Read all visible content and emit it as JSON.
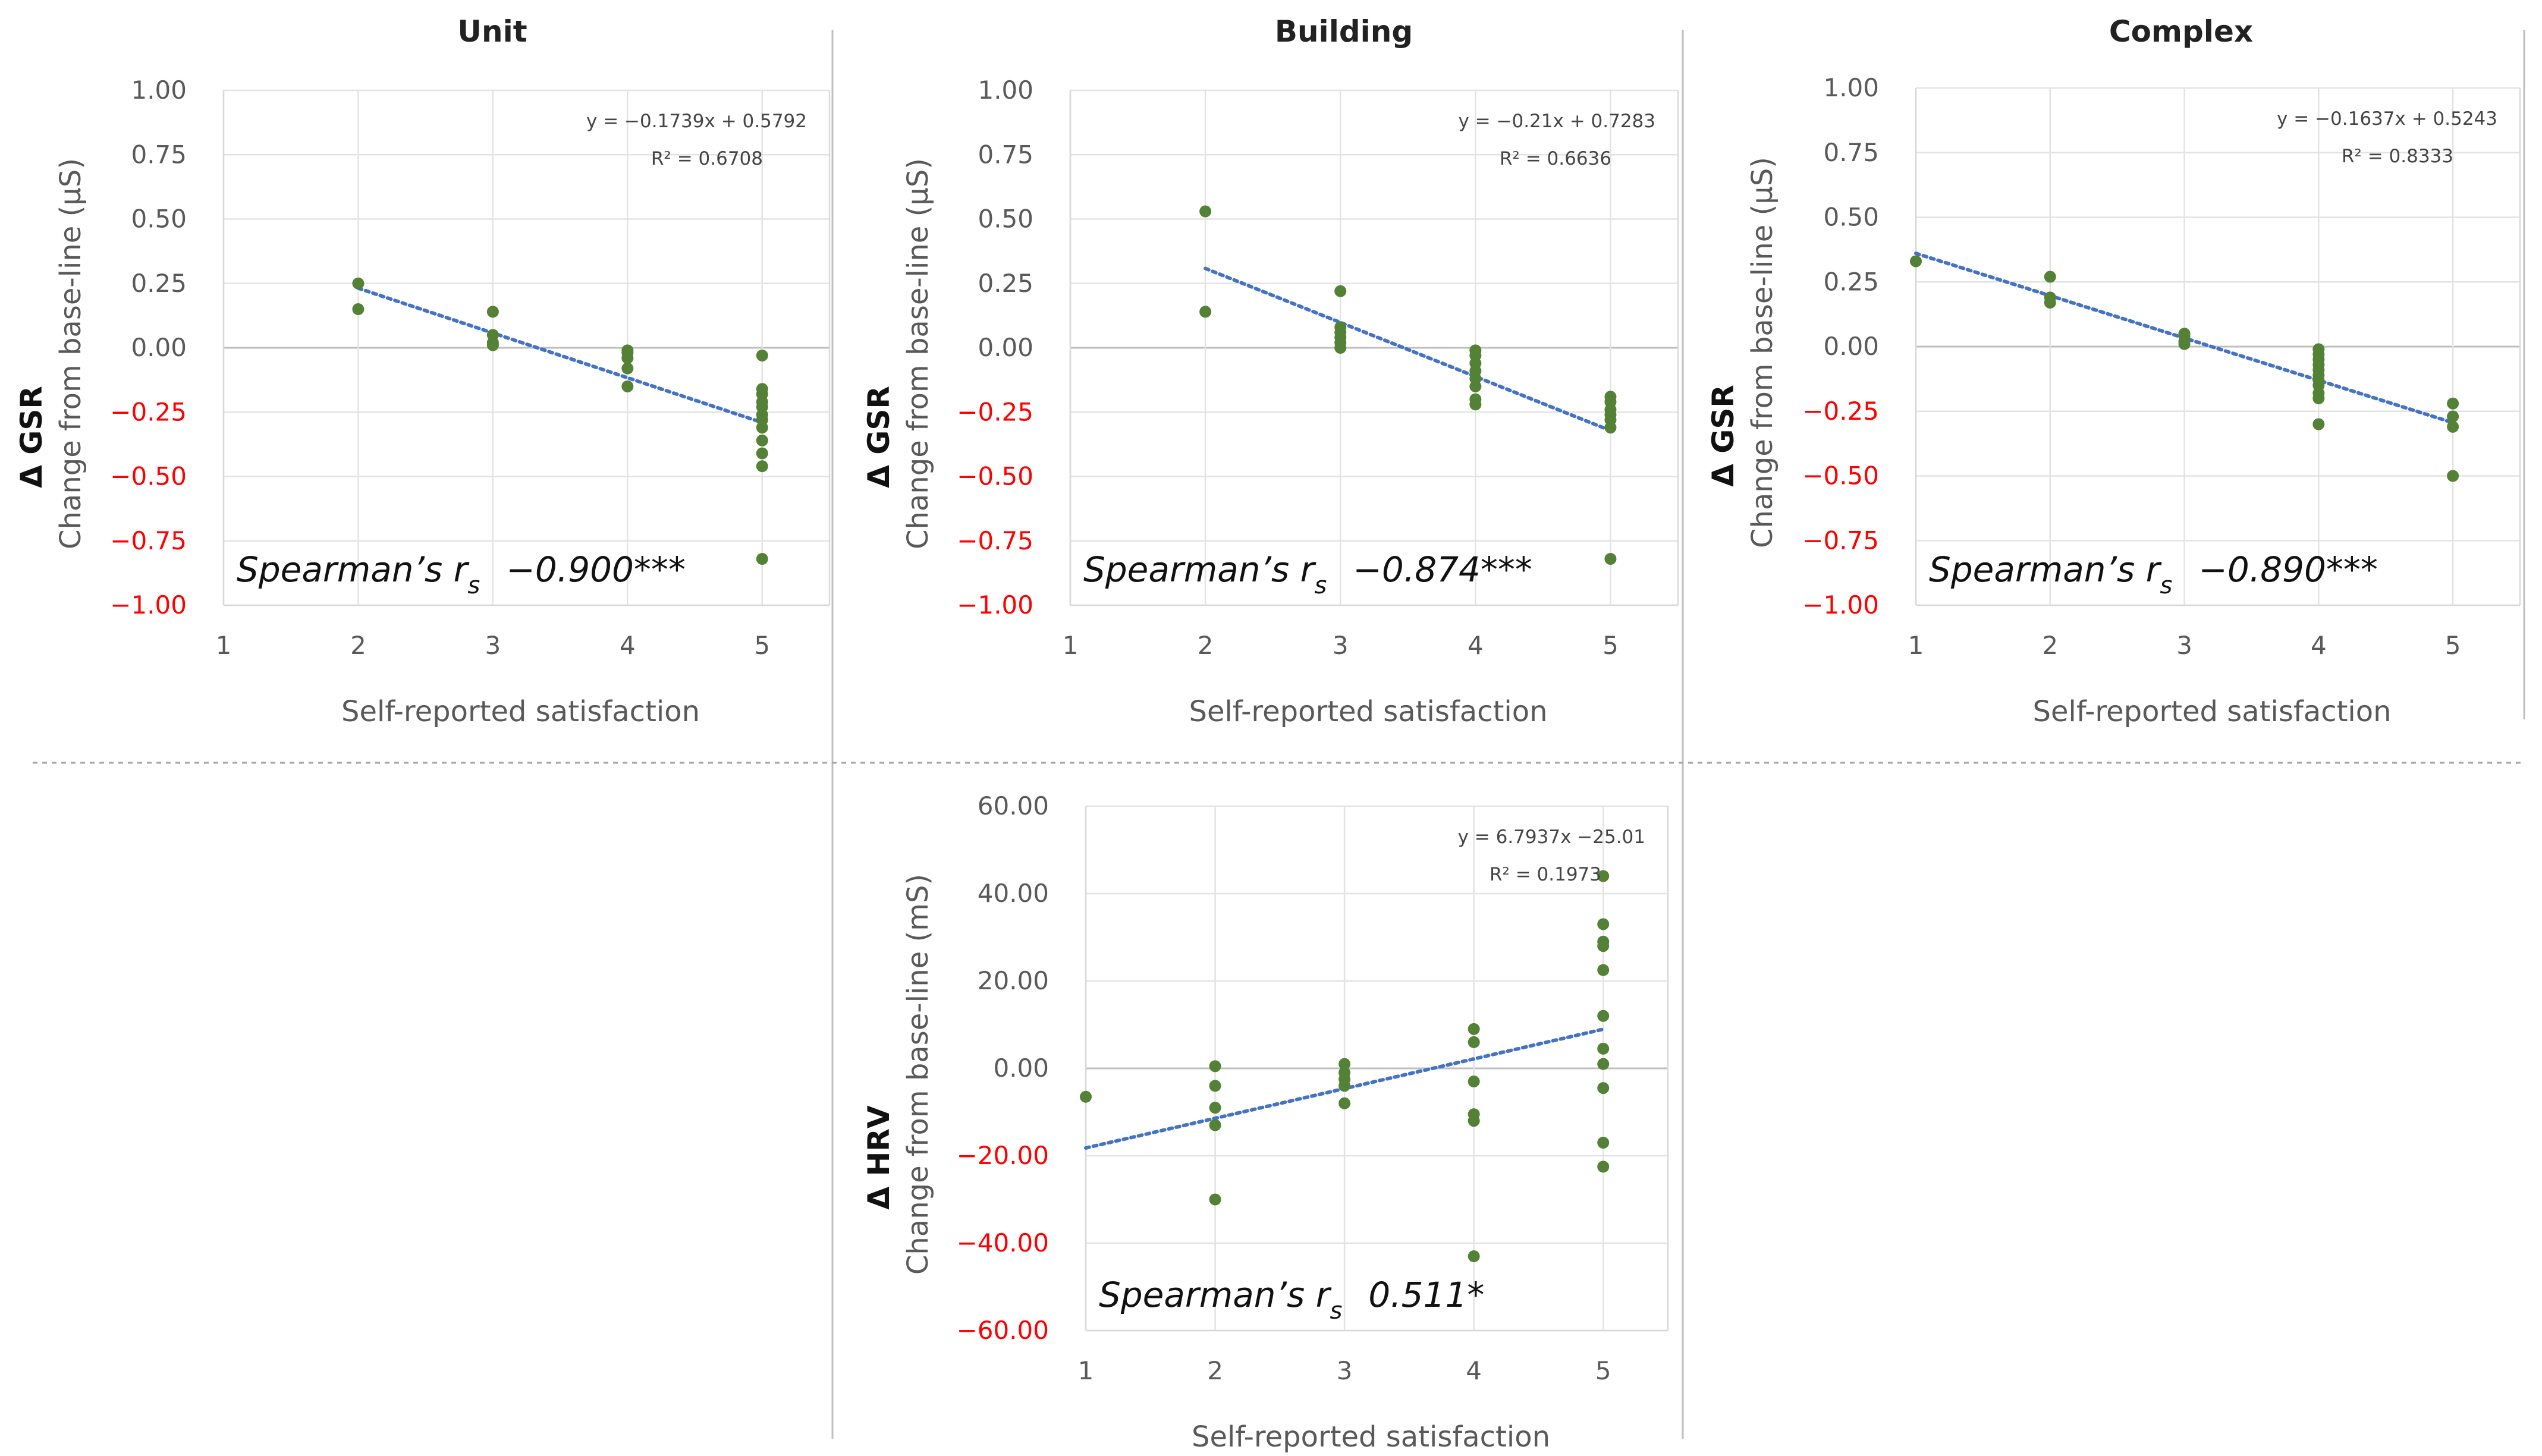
{
  "figure": {
    "x_axis_title": "Self-reported satisfaction",
    "gsr_variable": "Δ GSR",
    "hrv_variable": "Δ HRV"
  },
  "chart_data": [
    {
      "type": "scatter",
      "title": "Unit",
      "xlabel": "Self-reported satisfaction",
      "ylabel_var": "Δ GSR",
      "ylabel": "Change from base-line (μS)",
      "xlim": [
        1,
        5.5
      ],
      "ylim": [
        -1.0,
        1.0
      ],
      "xticks": [
        1,
        2,
        3,
        4,
        5
      ],
      "yticks": [
        1.0,
        0.75,
        0.5,
        0.25,
        0.0,
        -0.25,
        -0.5,
        -0.75,
        -1.0
      ],
      "ytick_labels": [
        "1.00",
        "0.75",
        "0.50",
        "0.25",
        "0.00",
        "−0.25",
        "−0.50",
        "−0.75",
        "−1.00"
      ],
      "negative_tick_color": "#ff0000",
      "point_color": "#538135",
      "trend_color": "#4472c4",
      "x": [
        2,
        2,
        3,
        3,
        3,
        3,
        4,
        4,
        4,
        4,
        4,
        5,
        5,
        5,
        5,
        5,
        5,
        5,
        5,
        5,
        5,
        5,
        5
      ],
      "y": [
        0.25,
        0.15,
        0.14,
        0.05,
        0.02,
        0.01,
        -0.01,
        -0.02,
        -0.04,
        -0.08,
        -0.15,
        -0.03,
        -0.16,
        -0.18,
        -0.21,
        -0.23,
        -0.26,
        -0.28,
        -0.31,
        -0.36,
        -0.41,
        -0.46,
        -0.82
      ],
      "trendline": {
        "slope": -0.1739,
        "intercept": 0.5792,
        "x_range": [
          2,
          5
        ]
      },
      "equation": "y = −0.1739x + 0.5792",
      "r_squared": "R² = 0.6708",
      "spearman_label": "Spearman’s r",
      "spearman_sub": "s",
      "spearman_value": "−0.900***"
    },
    {
      "type": "scatter",
      "title": "Building",
      "xlabel": "Self-reported satisfaction",
      "ylabel_var": "Δ GSR",
      "ylabel": "Change from base-line (μS)",
      "xlim": [
        1,
        5.5
      ],
      "ylim": [
        -1.0,
        1.0
      ],
      "xticks": [
        1,
        2,
        3,
        4,
        5
      ],
      "yticks": [
        1.0,
        0.75,
        0.5,
        0.25,
        0.0,
        -0.25,
        -0.5,
        -0.75,
        -1.0
      ],
      "ytick_labels": [
        "1.00",
        "0.75",
        "0.50",
        "0.25",
        "0.00",
        "−0.25",
        "−0.50",
        "−0.75",
        "−1.00"
      ],
      "negative_tick_color": "#ff0000",
      "point_color": "#538135",
      "trend_color": "#4472c4",
      "x": [
        2,
        2,
        3,
        3,
        3,
        3,
        3,
        3,
        4,
        4,
        4,
        4,
        4,
        4,
        4,
        4,
        5,
        5,
        5,
        5,
        5,
        5,
        5
      ],
      "y": [
        0.53,
        0.14,
        0.22,
        0.08,
        0.06,
        0.04,
        0.02,
        0.0,
        -0.01,
        -0.03,
        -0.06,
        -0.09,
        -0.12,
        -0.15,
        -0.2,
        -0.22,
        -0.19,
        -0.21,
        -0.24,
        -0.26,
        -0.28,
        -0.31,
        -0.82
      ],
      "trendline": {
        "slope": -0.21,
        "intercept": 0.7283,
        "x_range": [
          2,
          5
        ]
      },
      "equation": "y = −0.21x + 0.7283",
      "r_squared": "R² = 0.6636",
      "spearman_label": "Spearman’s r",
      "spearman_sub": "s",
      "spearman_value": "−0.874***"
    },
    {
      "type": "scatter",
      "title": "Complex",
      "xlabel": "Self-reported satisfaction",
      "ylabel_var": "Δ GSR",
      "ylabel": "Change from base-line (μS)",
      "xlim": [
        1,
        5.5
      ],
      "ylim": [
        -1.0,
        1.0
      ],
      "xticks": [
        1,
        2,
        3,
        4,
        5
      ],
      "yticks": [
        1.0,
        0.75,
        0.5,
        0.25,
        0.0,
        -0.25,
        -0.5,
        -0.75,
        -1.0
      ],
      "ytick_labels": [
        "1.00",
        "0.75",
        "0.50",
        "0.25",
        "0.00",
        "−0.25",
        "−0.50",
        "−0.75",
        "−1.00"
      ],
      "negative_tick_color": "#ff0000",
      "point_color": "#538135",
      "trend_color": "#4472c4",
      "x": [
        1,
        2,
        2,
        2,
        3,
        3,
        3,
        3,
        4,
        4,
        4,
        4,
        4,
        4,
        4,
        4,
        4,
        4,
        4,
        5,
        5,
        5,
        5
      ],
      "y": [
        0.33,
        0.27,
        0.19,
        0.17,
        0.05,
        0.04,
        0.02,
        0.01,
        -0.01,
        -0.03,
        -0.05,
        -0.07,
        -0.09,
        -0.11,
        -0.13,
        -0.15,
        -0.18,
        -0.2,
        -0.3,
        -0.22,
        -0.27,
        -0.31,
        -0.5
      ],
      "trendline": {
        "slope": -0.1637,
        "intercept": 0.5243,
        "x_range": [
          1,
          5
        ]
      },
      "equation": "y = −0.1637x + 0.5243",
      "r_squared": "R² = 0.8333",
      "spearman_label": "Spearman’s r",
      "spearman_sub": "s",
      "spearman_value": "−0.890***"
    },
    {
      "type": "scatter",
      "title": "",
      "xlabel": "Self-reported satisfaction",
      "ylabel_var": "Δ HRV",
      "ylabel": "Change from base-line (mS)",
      "xlim": [
        1,
        5.5
      ],
      "ylim": [
        -60,
        60
      ],
      "xticks": [
        1,
        2,
        3,
        4,
        5
      ],
      "yticks": [
        60,
        40,
        20,
        0,
        -20,
        -40,
        -60
      ],
      "ytick_labels": [
        "60.00",
        "40.00",
        "20.00",
        "0.00",
        "−20.00",
        "−40.00",
        "−60.00"
      ],
      "negative_tick_color": "#ff0000",
      "point_color": "#538135",
      "trend_color": "#4472c4",
      "x": [
        1,
        2,
        2,
        2,
        2,
        2,
        3,
        3,
        3,
        3,
        3,
        4,
        4,
        4,
        4,
        4,
        4,
        5,
        5,
        5,
        5,
        5,
        5,
        5,
        5,
        5,
        5,
        5
      ],
      "y": [
        -6.5,
        0.5,
        -4,
        -9,
        -13,
        -30,
        1,
        -1,
        -2.5,
        -4,
        -8,
        9,
        6,
        -3,
        -10.5,
        -12,
        -43,
        44,
        33,
        29,
        28,
        22.5,
        12,
        4.5,
        1,
        -4.5,
        -17,
        -22.5
      ],
      "trendline": {
        "slope": 6.7937,
        "intercept": -25.01,
        "x_range": [
          1,
          5
        ]
      },
      "equation": "y = 6.7937x −25.01",
      "r_squared": "R² = 0.1973",
      "spearman_label": "Spearman’s r",
      "spearman_sub": "s",
      "spearman_value": "0.511*"
    }
  ]
}
